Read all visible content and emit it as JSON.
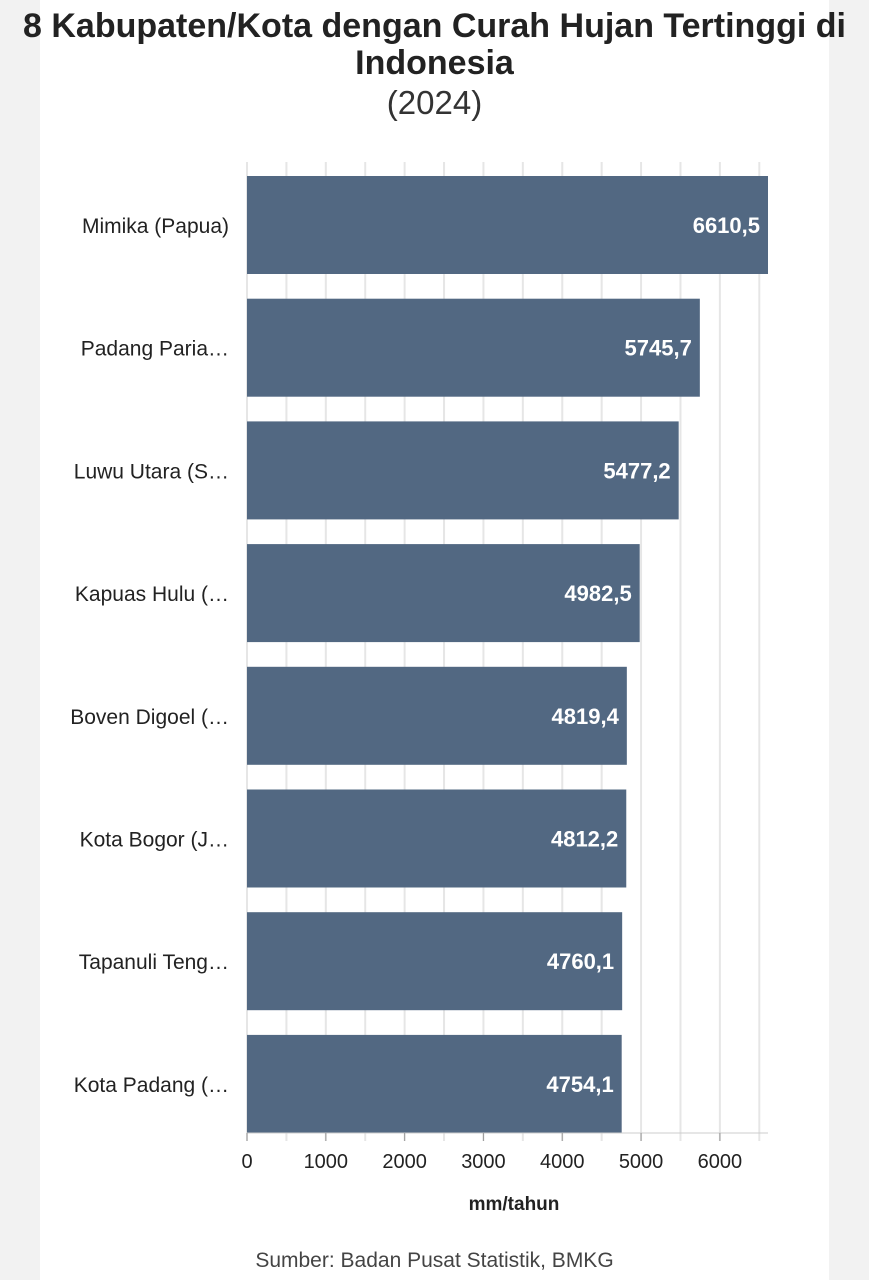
{
  "chart_data": {
    "type": "bar",
    "orientation": "horizontal",
    "title": "8 Kabupaten/Kota dengan Curah Hujan Tertinggi di Indonesia",
    "subtitle": "(2024)",
    "categories": [
      "Mimika (Papua)",
      "Padang Paria…",
      "Luwu Utara (S…",
      "Kapuas Hulu (…",
      "Boven Digoel (…",
      "Kota Bogor (J…",
      "Tapanuli Teng…",
      "Kota Padang (…"
    ],
    "values": [
      6610.5,
      5745.7,
      5477.2,
      4982.5,
      4819.4,
      4812.2,
      4760.1,
      4754.1
    ],
    "value_labels": [
      "6610,5",
      "5745,7",
      "5477,2",
      "4982,5",
      "4819,4",
      "4812,2",
      "4760,1",
      "4754,1"
    ],
    "xlabel": "mm/tahun",
    "ylabel": "",
    "xlim": [
      0,
      6610.5
    ],
    "xticks": [
      0,
      1000,
      2000,
      3000,
      4000,
      5000,
      6000
    ],
    "grid": true,
    "bar_color": "#526882",
    "grid_color": "#e6e6e6",
    "label_color": "#ffffff",
    "source": "Sumber: Badan Pusat Statistik, BMKG"
  }
}
